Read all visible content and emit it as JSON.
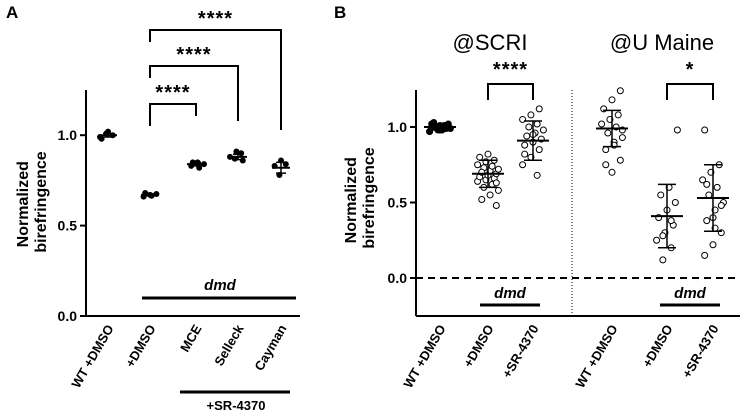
{
  "chart_data": [
    {
      "panel": "A",
      "type": "scatter",
      "ylabel": "Normalized birefringence",
      "ylim": [
        0.0,
        1.25
      ],
      "yticks": [
        "0.0",
        "0.5",
        "1.0"
      ],
      "categories": [
        "WT +DMSO",
        "+DMSO",
        "MCE",
        "Selleck",
        "Cayman"
      ],
      "points": [
        [
          0.99,
          1.01,
          1.0,
          0.98,
          1.02
        ],
        [
          0.66,
          0.67,
          0.675,
          0.68,
          0.665
        ],
        [
          0.83,
          0.85,
          0.84,
          0.85,
          0.82
        ],
        [
          0.87,
          0.9,
          0.88,
          0.91,
          0.86
        ],
        [
          0.78,
          0.84,
          0.83,
          0.86
        ]
      ],
      "means": [
        1.0,
        0.67,
        0.84,
        0.88,
        0.82
      ],
      "sem": [
        0.01,
        0.005,
        0.01,
        0.015,
        0.03
      ],
      "group_label": "dmd",
      "group_sublabel": "+SR-4370",
      "significance": [
        {
          "from": 1,
          "to": 2,
          "label": "****"
        },
        {
          "from": 1,
          "to": 3,
          "label": "****"
        },
        {
          "from": 1,
          "to": 4,
          "label": "****"
        }
      ]
    },
    {
      "panel": "B",
      "type": "scatter",
      "ylabel": "Normalized birefringence",
      "ylim": [
        -0.2,
        1.35
      ],
      "yticks": [
        "0.0",
        "0.5",
        "1.0"
      ],
      "reference_line": 0.0,
      "sites": [
        "@SCRI",
        "@U Maine"
      ],
      "categories": [
        "WT +DMSO",
        "+DMSO",
        "+SR-4370",
        "WT +DMSO",
        "+DMSO",
        "+SR-4370"
      ],
      "points": [
        [
          0.97,
          0.98,
          0.99,
          1.0,
          1.01,
          1.02,
          1.03,
          0.98,
          0.99,
          1.0,
          1.01,
          0.97,
          0.99,
          1.0,
          1.02,
          0.98,
          1.0,
          1.01
        ],
        [
          0.48,
          0.52,
          0.55,
          0.58,
          0.6,
          0.62,
          0.64,
          0.65,
          0.66,
          0.67,
          0.68,
          0.69,
          0.7,
          0.71,
          0.72,
          0.73,
          0.74,
          0.75,
          0.77,
          0.78,
          0.8,
          0.82,
          0.63,
          0.7
        ],
        [
          0.68,
          0.75,
          0.8,
          0.85,
          0.88,
          0.9,
          0.92,
          0.94,
          0.96,
          0.98,
          1.0,
          1.02,
          1.05,
          1.08,
          1.12,
          0.82,
          0.95
        ],
        [
          0.7,
          0.78,
          0.85,
          0.9,
          0.93,
          0.96,
          1.0,
          1.02,
          1.05,
          1.08,
          1.12,
          1.18,
          1.24,
          0.75,
          0.88,
          0.98
        ],
        [
          0.12,
          0.2,
          0.25,
          0.3,
          0.35,
          0.4,
          0.45,
          0.5,
          0.55,
          0.6,
          0.98,
          0.28,
          0.38
        ],
        [
          0.15,
          0.22,
          0.3,
          0.38,
          0.45,
          0.5,
          0.55,
          0.6,
          0.65,
          0.7,
          0.75,
          0.98,
          0.4,
          0.48,
          0.62,
          0.33
        ]
      ],
      "means": [
        1.0,
        0.69,
        0.91,
        0.99,
        0.41,
        0.53
      ],
      "sd": [
        0.02,
        0.09,
        0.13,
        0.12,
        0.21,
        0.22
      ],
      "group_labels": [
        "dmd",
        "dmd"
      ],
      "significance": [
        {
          "from": 1,
          "to": 2,
          "label": "****"
        },
        {
          "from": 4,
          "to": 5,
          "label": "*"
        }
      ]
    }
  ],
  "panel_letters": [
    "A",
    "B"
  ]
}
